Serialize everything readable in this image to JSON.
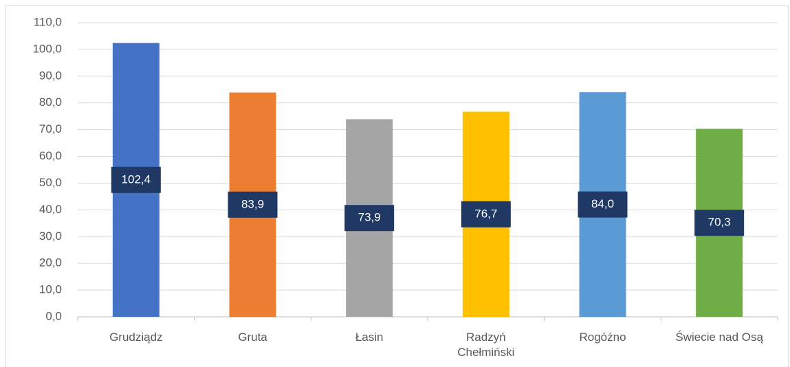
{
  "chart_data": {
    "type": "bar",
    "categories": [
      "Grudziądz",
      "Gruta",
      "Łasin",
      "Radzyń Chełmiński",
      "Rogóźno",
      "Świecie nad Osą"
    ],
    "values": [
      102.4,
      83.9,
      73.9,
      76.7,
      84.0,
      70.3
    ],
    "value_labels": [
      "102,4",
      "83,9",
      "73,9",
      "76,7",
      "84,0",
      "70,3"
    ],
    "colors": [
      "#4472c4",
      "#ed7d31",
      "#a5a5a5",
      "#ffc000",
      "#5b9bd5",
      "#70ad47"
    ],
    "ylim": [
      0,
      110
    ],
    "yticks": [
      {
        "value": 0,
        "label": "0,0"
      },
      {
        "value": 10,
        "label": "10,0"
      },
      {
        "value": 20,
        "label": "20,0"
      },
      {
        "value": 30,
        "label": "30,0"
      },
      {
        "value": 40,
        "label": "40,0"
      },
      {
        "value": 50,
        "label": "50,0"
      },
      {
        "value": 60,
        "label": "60,0"
      },
      {
        "value": 70,
        "label": "70,0"
      },
      {
        "value": 80,
        "label": "80,0"
      },
      {
        "value": 90,
        "label": "90,0"
      },
      {
        "value": 100,
        "label": "100,0"
      },
      {
        "value": 110,
        "label": "110,0"
      }
    ],
    "grid": true
  }
}
